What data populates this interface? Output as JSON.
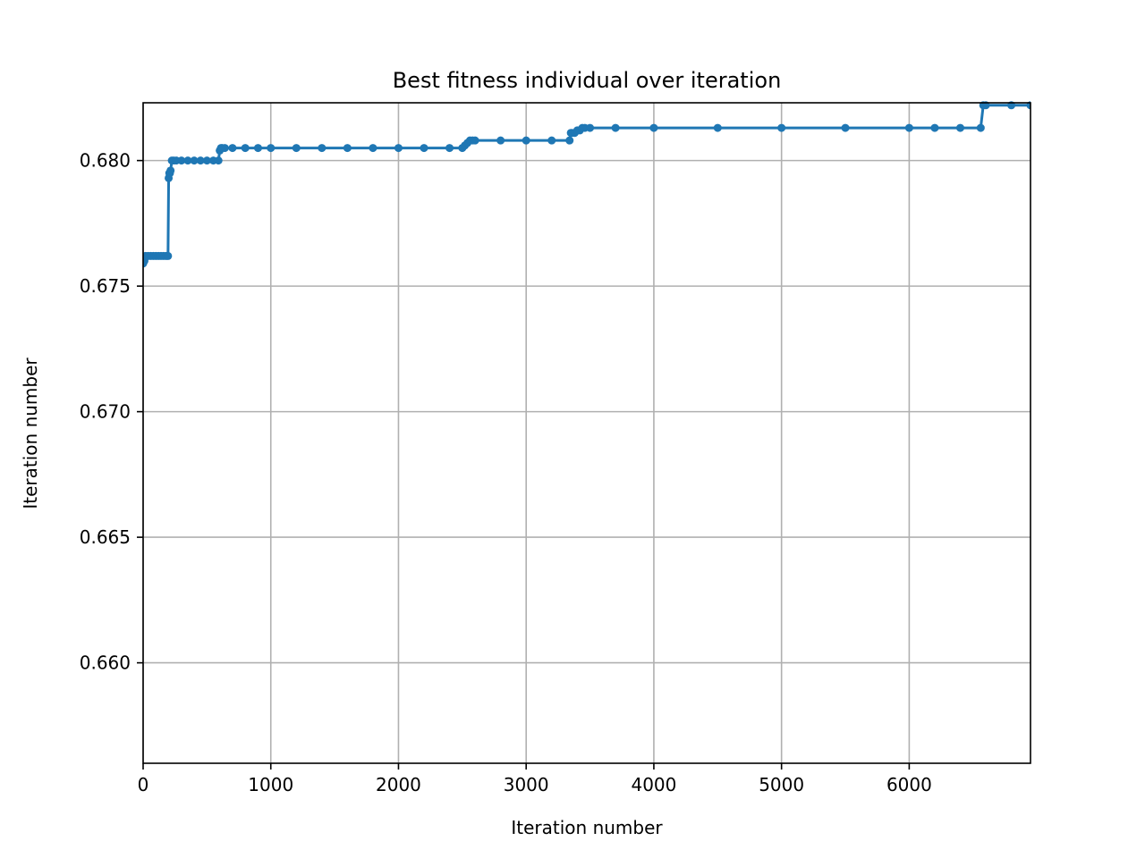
{
  "chart_data": {
    "type": "line",
    "title": "Best fitness individual over iteration",
    "xlabel": "Iteration number",
    "ylabel": "Iteration number",
    "xlim": [
      0,
      6950
    ],
    "ylim": [
      0.656,
      0.6823
    ],
    "xticks": [
      0,
      1000,
      2000,
      3000,
      4000,
      5000,
      6000
    ],
    "xtick_labels": [
      "0",
      "1000",
      "2000",
      "3000",
      "4000",
      "5000",
      "6000"
    ],
    "yticks": [
      0.66,
      0.665,
      0.67,
      0.675,
      0.68
    ],
    "ytick_labels": [
      "0.660",
      "0.665",
      "0.670",
      "0.675",
      "0.680"
    ],
    "grid": true,
    "legend": "none",
    "line_color": "#1f77b4",
    "series": [
      {
        "x": [
          0,
          10,
          20,
          40,
          60,
          80,
          100,
          120,
          140,
          160,
          180,
          195,
          200,
          205,
          210,
          215,
          225,
          240,
          260,
          300,
          350,
          400,
          450,
          500,
          550,
          590,
          600,
          610,
          620,
          640,
          700,
          800,
          900,
          1000,
          1200,
          1400,
          1600,
          1800,
          2000,
          2200,
          2400,
          2500,
          2520,
          2540,
          2560,
          2580,
          2600,
          2800,
          3000,
          3200,
          3340,
          3350,
          3360,
          3380,
          3400,
          3420,
          3440,
          3460,
          3500,
          3700,
          4000,
          4500,
          5000,
          5500,
          6000,
          6200,
          6400,
          6560,
          6580,
          6600,
          6800,
          6950
        ],
        "y": [
          0.6759,
          0.676,
          0.6762,
          0.6762,
          0.6762,
          0.6762,
          0.6762,
          0.6762,
          0.6762,
          0.6762,
          0.6762,
          0.6762,
          0.6793,
          0.6795,
          0.6795,
          0.6796,
          0.68,
          0.68,
          0.68,
          0.68,
          0.68,
          0.68,
          0.68,
          0.68,
          0.68,
          0.68,
          0.6804,
          0.6805,
          0.6805,
          0.6805,
          0.6805,
          0.6805,
          0.6805,
          0.6805,
          0.6805,
          0.6805,
          0.6805,
          0.6805,
          0.6805,
          0.6805,
          0.6805,
          0.6805,
          0.6806,
          0.6807,
          0.6808,
          0.6808,
          0.6808,
          0.6808,
          0.6808,
          0.6808,
          0.6808,
          0.6811,
          0.6811,
          0.6811,
          0.6812,
          0.6812,
          0.6813,
          0.6813,
          0.6813,
          0.6813,
          0.6813,
          0.6813,
          0.6813,
          0.6813,
          0.6813,
          0.6813,
          0.6813,
          0.6813,
          0.6822,
          0.6822,
          0.6822,
          0.6822
        ]
      }
    ]
  }
}
